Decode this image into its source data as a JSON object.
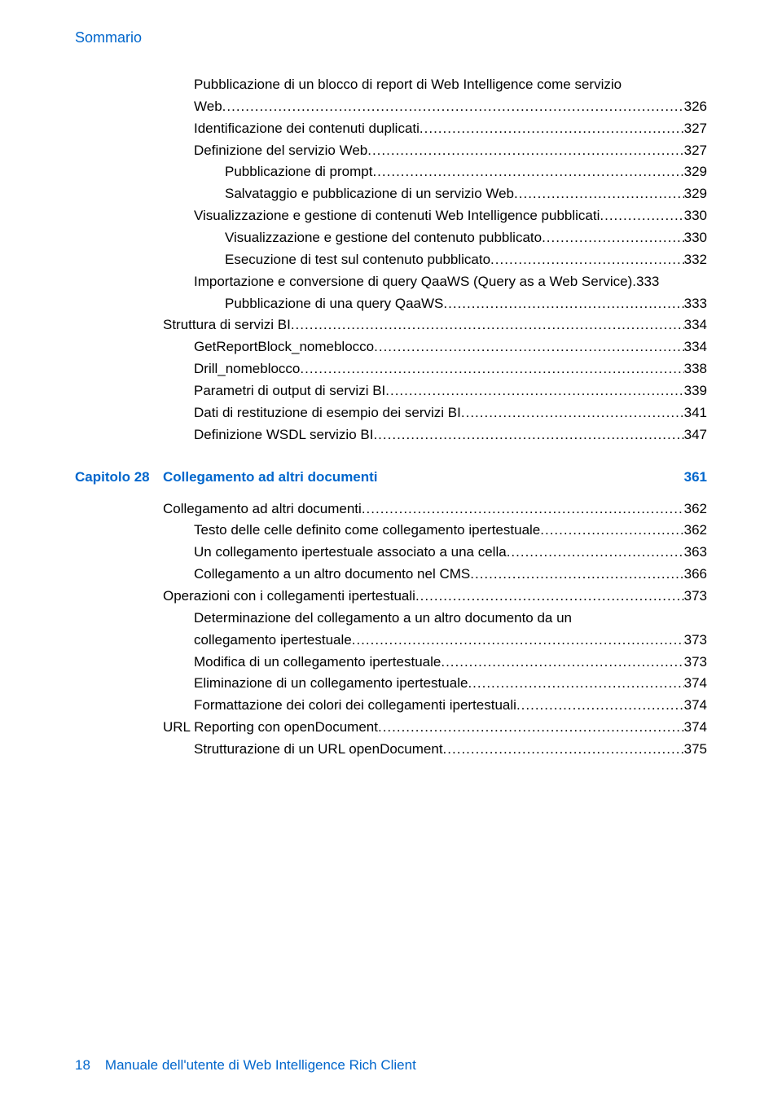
{
  "header": {
    "label": "Sommario"
  },
  "section1": {
    "lines": [
      {
        "indent": 1,
        "text": "Pubblicazione di un blocco di report di Web Intelligence come servizio",
        "wrap": "Web",
        "page": "326"
      },
      {
        "indent": 1,
        "text": "Identificazione dei contenuti duplicati",
        "page": "327"
      },
      {
        "indent": 1,
        "text": "Definizione del servizio Web",
        "page": "327"
      },
      {
        "indent": 2,
        "text": "Pubblicazione di prompt",
        "page": "329"
      },
      {
        "indent": 2,
        "text": "Salvataggio e pubblicazione di un servizio Web",
        "page": "329"
      },
      {
        "indent": 1,
        "text": "Visualizzazione e gestione di contenuti Web Intelligence pubblicati",
        "page": "330"
      },
      {
        "indent": 2,
        "text": "Visualizzazione e gestione del contenuto pubblicato",
        "page": "330"
      },
      {
        "indent": 2,
        "text": "Esecuzione di test sul contenuto pubblicato",
        "page": "332"
      },
      {
        "indent": 1,
        "text": "Importazione e conversione di query QaaWS (Query as a Web Service).",
        "page": "333",
        "nodots": true
      },
      {
        "indent": 2,
        "text": "Pubblicazione di una query QaaWS",
        "page": "333"
      },
      {
        "indent": 0,
        "text": "Struttura di servizi BI",
        "page": "334"
      },
      {
        "indent": 1,
        "text": "GetReportBlock_nomeblocco",
        "page": "334"
      },
      {
        "indent": 1,
        "text": "Drill_nomeblocco",
        "page": "338"
      },
      {
        "indent": 1,
        "text": "Parametri di output di servizi BI",
        "page": "339"
      },
      {
        "indent": 1,
        "text": "Dati di restituzione di esempio dei servizi BI",
        "page": "341"
      },
      {
        "indent": 1,
        "text": "Definizione WSDL servizio BI",
        "page": "347"
      }
    ]
  },
  "chapter": {
    "label": "Capitolo 28",
    "title": "Collegamento ad altri documenti",
    "page": "361"
  },
  "section2": {
    "lines": [
      {
        "indent": 0,
        "text": "Collegamento ad altri documenti",
        "page": "362"
      },
      {
        "indent": 1,
        "text": "Testo delle celle definito come collegamento ipertestuale",
        "page": "362"
      },
      {
        "indent": 1,
        "text": "Un collegamento ipertestuale associato a una cella",
        "page": "363"
      },
      {
        "indent": 1,
        "text": "Collegamento a un altro documento nel CMS",
        "page": "366"
      },
      {
        "indent": 0,
        "text": "Operazioni con i collegamenti ipertestuali",
        "page": "373"
      },
      {
        "indent": 1,
        "text": "Determinazione del collegamento a un altro documento da un",
        "wrap": "collegamento  ipertestuale",
        "page": "373"
      },
      {
        "indent": 1,
        "text": "Modifica di un collegamento ipertestuale",
        "page": "373"
      },
      {
        "indent": 1,
        "text": "Eliminazione di un collegamento ipertestuale",
        "page": "374"
      },
      {
        "indent": 1,
        "text": "Formattazione dei colori dei collegamenti ipertestuali",
        "page": "374"
      },
      {
        "indent": 0,
        "text": "URL Reporting con openDocument ",
        "page": "374"
      },
      {
        "indent": 1,
        "text": "Strutturazione di un URL openDocument ",
        "page": "375"
      }
    ]
  },
  "footer": {
    "page_number": "18",
    "doc_title": "Manuale dell'utente di Web Intelligence Rich Client"
  },
  "colors": {
    "accent": "#0066cc",
    "text": "#000000",
    "background": "#ffffff"
  }
}
